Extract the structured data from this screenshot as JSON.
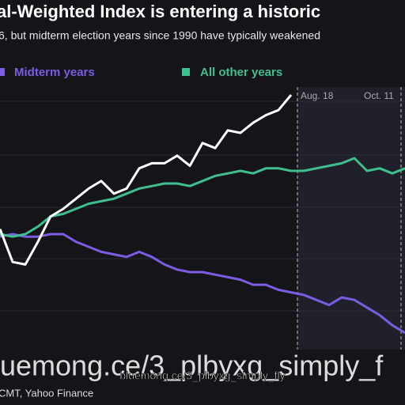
{
  "chart_data": {
    "type": "line",
    "title": "al-Weighted Index is entering a historic",
    "subtitle": "6, but midterm election years since 1990 have typically weakened",
    "annotations": [
      "Aug. 18",
      "Oct. 11"
    ],
    "watermark": "bluemong.ce/3_plbyxg_simply_fly",
    "overlay_text": "luemong.ce/3_plbyxg_simply_f",
    "source": "CMT, Yahoo Finance",
    "x": [
      0,
      16,
      32,
      48,
      64,
      80,
      96,
      112,
      128,
      144,
      160,
      176,
      192,
      208,
      224,
      240,
      256,
      272,
      288,
      304,
      320,
      336,
      352,
      368,
      384,
      400,
      416,
      432,
      448,
      464,
      480,
      496,
      512
    ],
    "xlim": [
      0,
      512
    ],
    "ylim": [
      0,
      100
    ],
    "series": [
      {
        "name": "Midterm years",
        "color": "#7b5ce3",
        "values": [
          44,
          45,
          44,
          44,
          45,
          45,
          42,
          40,
          38,
          37,
          36,
          38,
          36,
          33,
          31,
          30,
          30,
          29,
          28,
          27,
          25,
          25,
          23,
          22,
          21,
          19,
          17,
          20,
          19,
          16,
          13,
          9,
          6
        ]
      },
      {
        "name": "All other years",
        "color": "#3fbf8f",
        "values": [
          45,
          44,
          45,
          48,
          52,
          53,
          55,
          57,
          58,
          59,
          61,
          63,
          64,
          65,
          65,
          64,
          66,
          68,
          69,
          70,
          69,
          71,
          71,
          70,
          70,
          71,
          72,
          73,
          75,
          70,
          71,
          69,
          71
        ]
      },
      {
        "color": "#ffffff",
        "values": [
          47,
          34,
          33,
          42,
          52,
          55,
          59,
          63,
          66,
          61,
          63,
          71,
          73,
          73,
          76,
          72,
          81,
          79,
          86,
          85,
          89,
          92,
          94,
          100,
          null,
          null,
          null,
          null,
          null,
          null,
          null,
          null,
          null
        ]
      }
    ]
  }
}
